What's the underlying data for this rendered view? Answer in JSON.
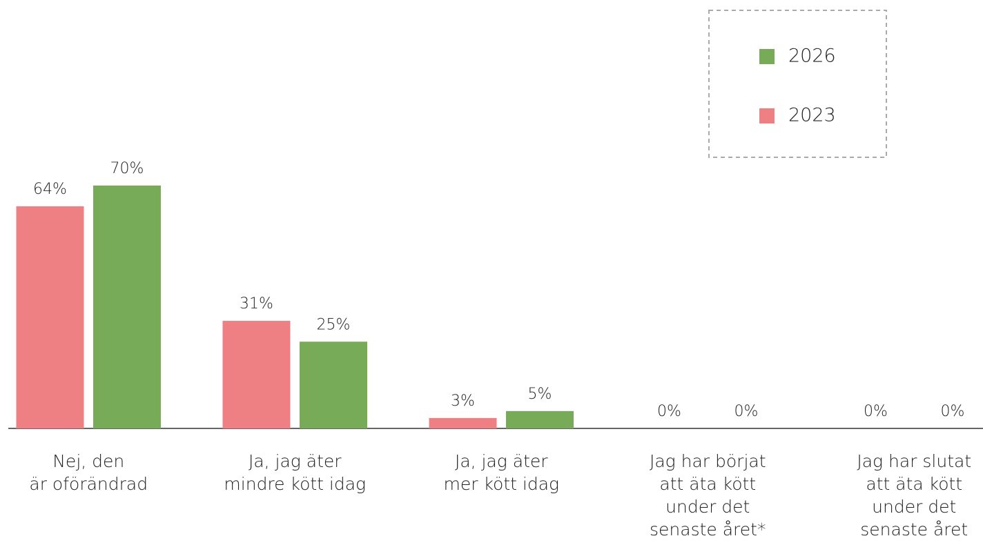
{
  "chart_data": {
    "type": "bar",
    "categories": [
      "Nej, den\när oförändrad",
      "Ja, jag äter\nmindre kött idag",
      "Ja, jag äter\nmer kött idag",
      "Jag har börjat\natt äta kött\nunder det\nsenaste året*",
      "Jag har slutat\natt äta kött\nunder det\nsenaste året"
    ],
    "series": [
      {
        "name": "2023",
        "color": "#ee7f83",
        "values": [
          64,
          31,
          3,
          0,
          0
        ],
        "value_labels": [
          "64%",
          "31%",
          "3%",
          "0%",
          "0%"
        ]
      },
      {
        "name": "2026",
        "color": "#78ab58",
        "values": [
          70,
          25,
          5,
          0,
          0
        ],
        "value_labels": [
          "70%",
          "25%",
          "5%",
          "0%",
          "0%"
        ]
      }
    ],
    "legend": "top-right"
  }
}
